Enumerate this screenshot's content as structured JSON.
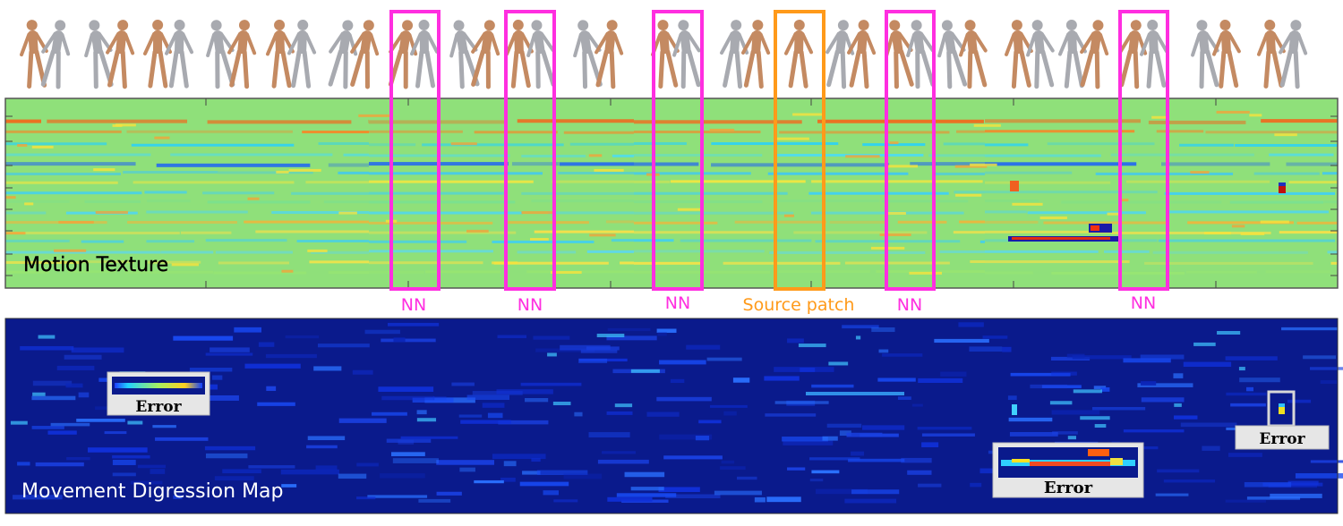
{
  "texture_label": "Motion Texture",
  "digression_label": "Movement Digression Map",
  "nn_label": "NN",
  "source_label": "Source patch",
  "error_label": "Error",
  "colors": {
    "nn_box": "#ff2ee0",
    "source_box": "#ff9a1a",
    "texture_base": "#8fe07a",
    "map_base": "#0a1a8c"
  },
  "figure_icon": "dancing-mannequin-pair"
}
